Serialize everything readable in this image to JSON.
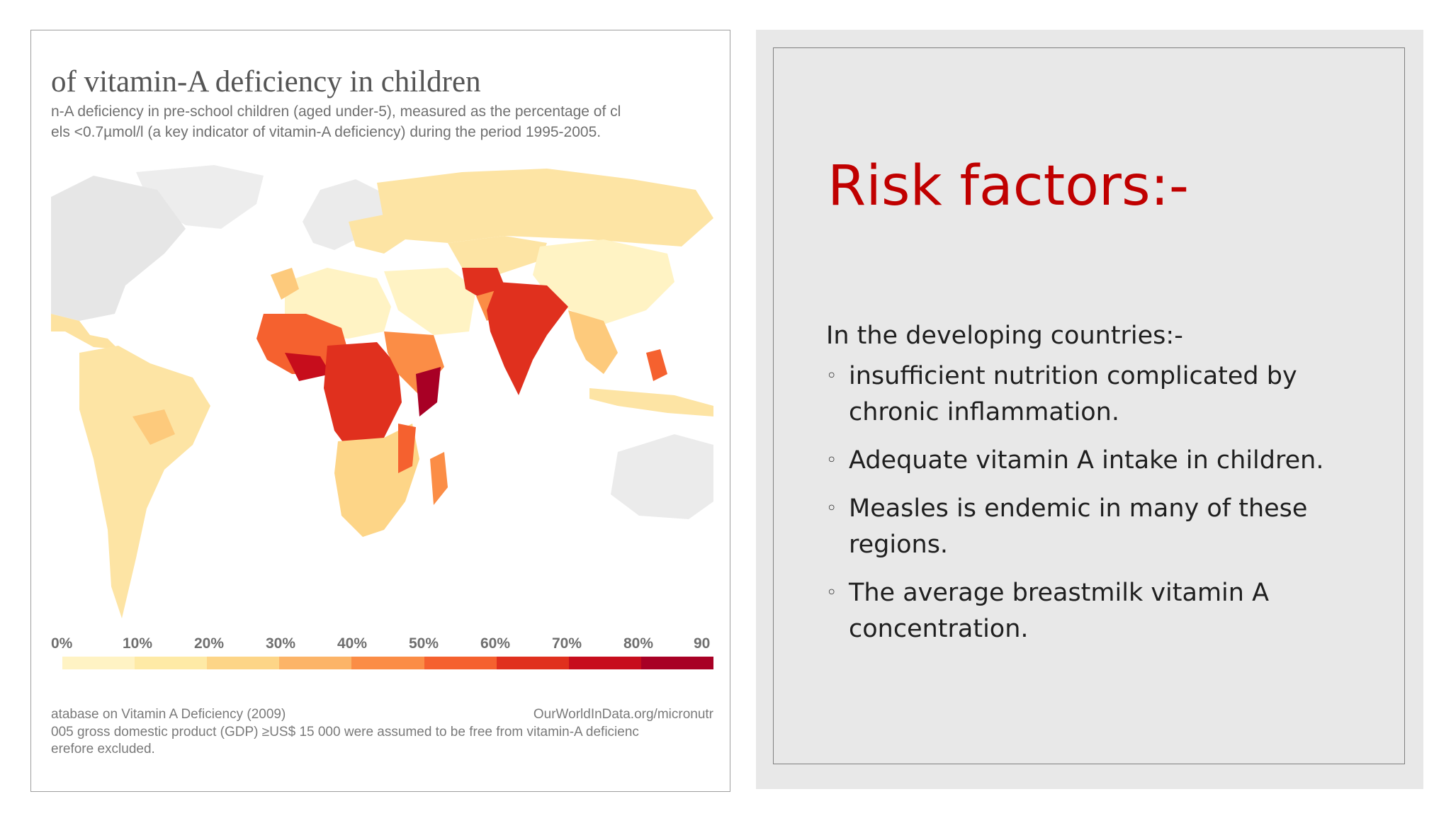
{
  "map_panel": {
    "title": "of vitamin-A deficiency in children",
    "subtitle_line1": "n-A deficiency in pre-school children (aged under-5), measured as the percentage of cl",
    "subtitle_line2": "els <0.7µmol/l (a key indicator of vitamin-A deficiency) during the period 1995-2005.",
    "legend": {
      "ticks": [
        "0%",
        "10%",
        "20%",
        "30%",
        "40%",
        "50%",
        "60%",
        "70%",
        "80%",
        "90"
      ],
      "colors": [
        "#fff3c4",
        "#feeaa6",
        "#fdd587",
        "#fcb468",
        "#fb8d46",
        "#f5612f",
        "#e0301e",
        "#c70d1c",
        "#a80025"
      ]
    },
    "footer_source": "atabase on Vitamin A Deficiency (2009)",
    "footer_url": "OurWorldInData.org/micronutr",
    "footer_line2": "005 gross domestic product (GDP) ≥US$ 15 000 were assumed to be free from vitamin-A deficienc",
    "footer_line3": "erefore excluded."
  },
  "content": {
    "heading": "Risk factors:-",
    "heading_color": "#c00000",
    "intro": "In the developing countries:-",
    "bullet_symbol": "◦",
    "bullets": [
      "insufficient nutrition complicated by chronic inflammation.",
      "Adequate vitamin A intake in children.",
      "Measles is endemic in many of these regions.",
      "The average breastmilk vitamin A concentration."
    ]
  }
}
